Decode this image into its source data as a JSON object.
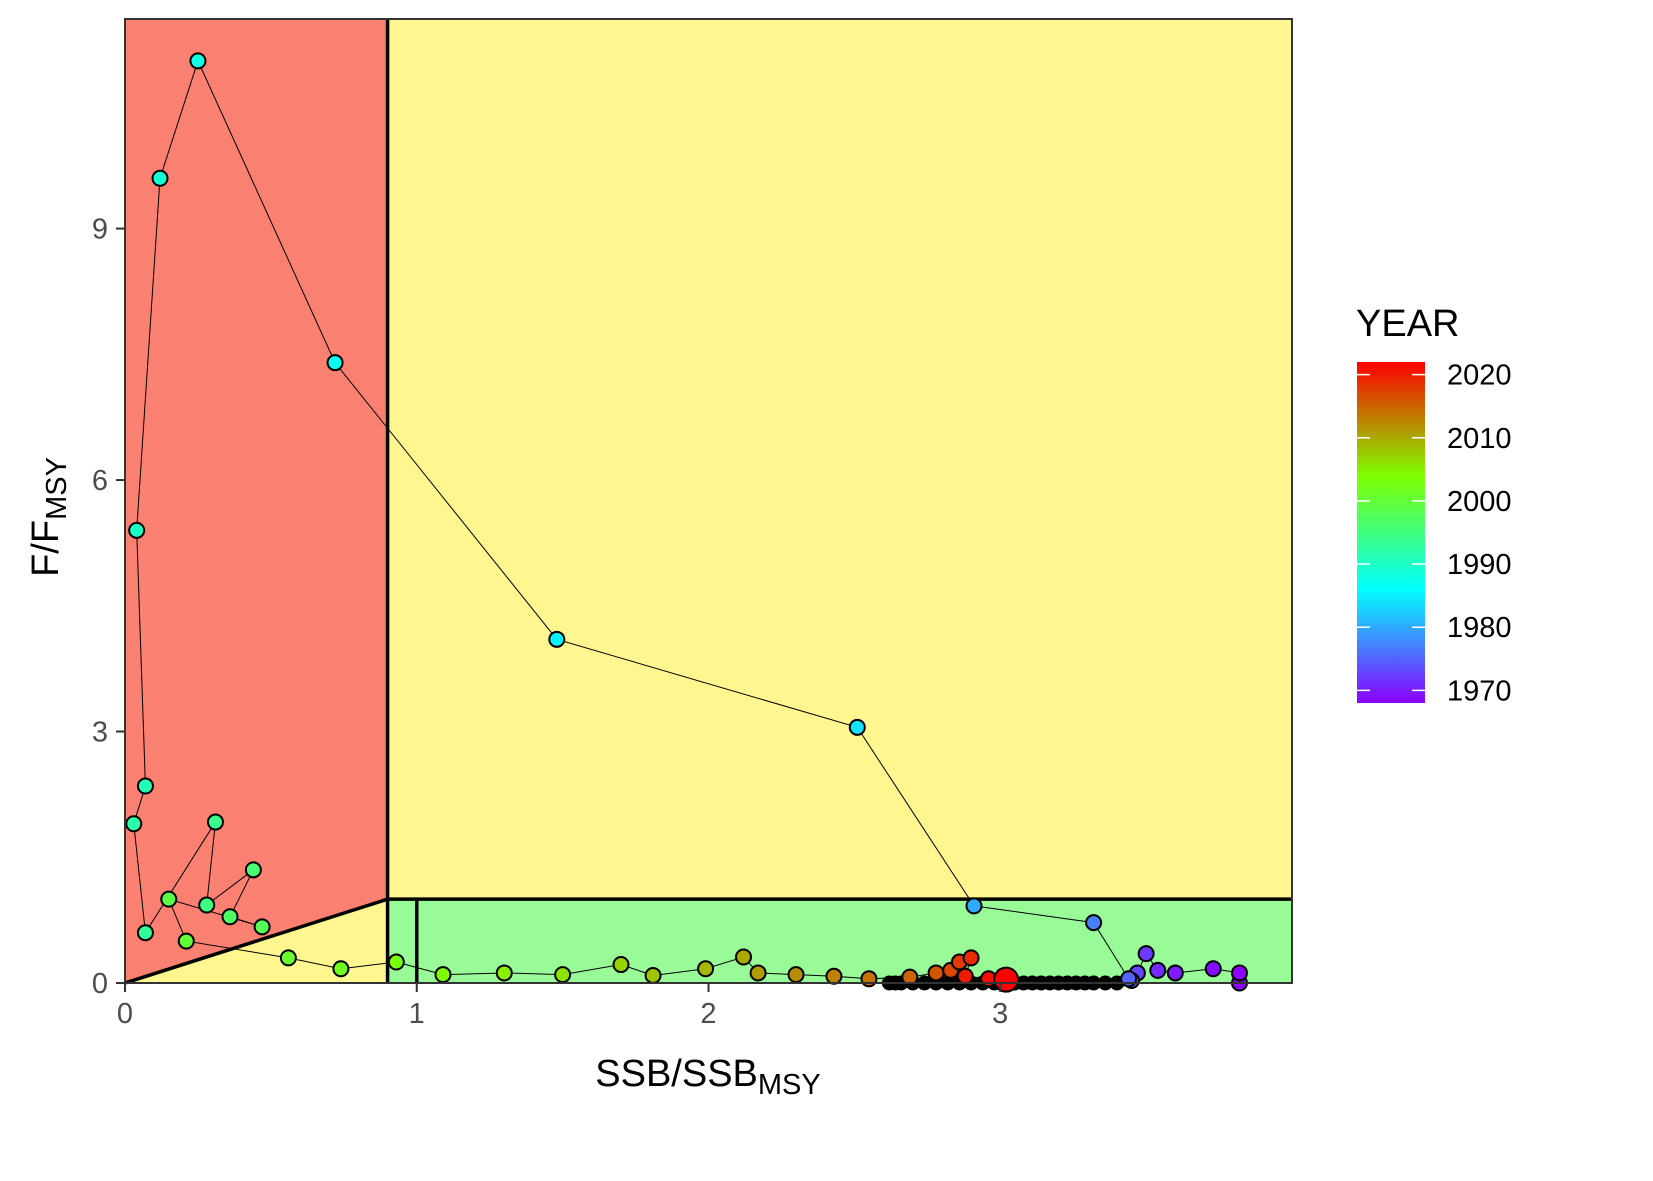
{
  "chart_data": {
    "type": "scatter",
    "subtype": "kobe-plot",
    "xlabel": {
      "main": "SSB/SSB",
      "sub": "MSY"
    },
    "ylabel": {
      "main": "F/F",
      "sub": "MSY"
    },
    "xlim": [
      0,
      4.0
    ],
    "ylim": [
      0,
      11.5
    ],
    "xticks": [
      0,
      1,
      2,
      3
    ],
    "yticks": [
      0,
      3,
      6,
      9
    ],
    "grid": false,
    "zones": {
      "colors": {
        "overfished": "#fa8072",
        "caution": "#fff68f",
        "healthy": "#98fb98"
      },
      "ssb_limit": 0.9,
      "ssb_msy": 1.0,
      "f_msy": 1.0
    },
    "legend": {
      "title": "YEAR",
      "type": "colorbar",
      "placement": "right",
      "range": [
        1968,
        2022
      ],
      "ticks": [
        1970,
        1980,
        1990,
        2000,
        2010,
        2020
      ],
      "colors": [
        "#8b00ff",
        "#00ffff",
        "#7fff00",
        "#ff0000"
      ]
    },
    "series": [
      {
        "values": [
          [
            3.82,
            0.0,
            1967
          ],
          [
            3.82,
            0.12,
            1968
          ],
          [
            3.73,
            0.17,
            1969
          ],
          [
            3.6,
            0.12,
            1970
          ],
          [
            3.54,
            0.15,
            1971
          ],
          [
            3.5,
            0.35,
            1972
          ],
          [
            3.47,
            0.12,
            1973
          ],
          [
            3.45,
            0.03,
            1974
          ],
          [
            3.44,
            0.05,
            1975
          ],
          [
            3.32,
            0.72,
            1977
          ],
          [
            2.91,
            0.92,
            1980
          ],
          [
            2.51,
            3.05,
            1984
          ],
          [
            1.48,
            4.1,
            1985
          ],
          [
            0.72,
            7.4,
            1987
          ],
          [
            0.25,
            11.0,
            1988
          ],
          [
            0.12,
            9.6,
            1989
          ],
          [
            0.04,
            5.4,
            1990
          ],
          [
            0.07,
            2.35,
            1991
          ],
          [
            0.03,
            1.9,
            1992
          ],
          [
            0.07,
            0.6,
            1993
          ],
          [
            0.31,
            1.92,
            1994
          ],
          [
            0.28,
            0.93,
            1995
          ],
          [
            0.44,
            1.35,
            1996
          ],
          [
            0.36,
            0.79,
            1997
          ],
          [
            0.47,
            0.67,
            1998
          ],
          [
            0.15,
            1.0,
            1999
          ],
          [
            0.21,
            0.5,
            2000
          ],
          [
            0.56,
            0.3,
            2001
          ],
          [
            0.74,
            0.17,
            2002
          ],
          [
            0.93,
            0.25,
            2003
          ],
          [
            1.09,
            0.1,
            2004
          ],
          [
            1.3,
            0.12,
            2005
          ],
          [
            1.5,
            0.1,
            2006
          ],
          [
            1.7,
            0.22,
            2007
          ],
          [
            1.81,
            0.09,
            2008
          ],
          [
            1.99,
            0.17,
            2009
          ],
          [
            2.12,
            0.31,
            2010
          ],
          [
            2.17,
            0.12,
            2011
          ],
          [
            2.3,
            0.1,
            2012
          ],
          [
            2.43,
            0.08,
            2013
          ],
          [
            2.55,
            0.05,
            2014
          ],
          [
            2.69,
            0.07,
            2015
          ],
          [
            2.78,
            0.12,
            2016
          ],
          [
            2.83,
            0.15,
            2017
          ],
          [
            2.86,
            0.25,
            2018
          ],
          [
            2.9,
            0.3,
            2019
          ],
          [
            2.88,
            0.08,
            2020
          ],
          [
            2.96,
            0.05,
            2021
          ],
          [
            3.02,
            0.04,
            2022
          ]
        ]
      }
    ],
    "current_point": {
      "x": 3.02,
      "y": 0.04,
      "color": "#ff0000"
    },
    "baseline_points": [
      2.62,
      2.64,
      2.66,
      2.7,
      2.74,
      2.78,
      2.82,
      2.86,
      2.9,
      2.94,
      2.98,
      3.05,
      3.08,
      3.11,
      3.14,
      3.17,
      3.2,
      3.23,
      3.26,
      3.29,
      3.32,
      3.36,
      3.4
    ]
  }
}
